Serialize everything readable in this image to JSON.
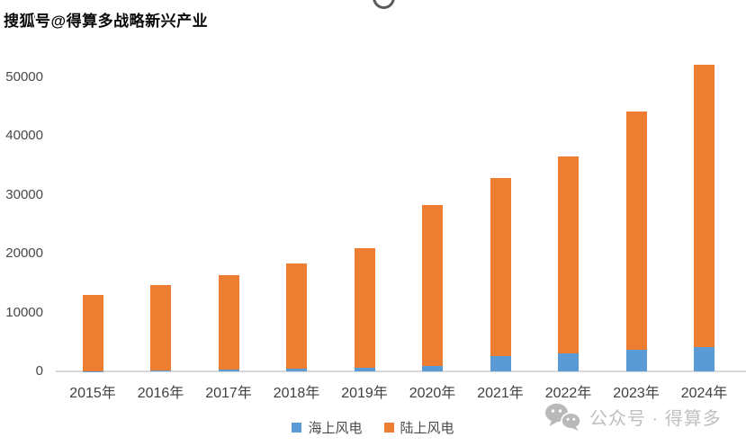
{
  "watermarks": {
    "top_left": "搜狐号@得算多战略新兴产业",
    "bottom_right": "公众号 · 得算多"
  },
  "chart_data": {
    "type": "bar",
    "stacked": true,
    "title": "",
    "xlabel": "",
    "ylabel": "",
    "categories": [
      "2015年",
      "2016年",
      "2017年",
      "2018年",
      "2019年",
      "2020年",
      "2021年",
      "2022年",
      "2023年",
      "2024年"
    ],
    "series": [
      {
        "name": "海上风电",
        "color": "#5B9BD5",
        "values": [
          75,
          150,
          280,
          440,
          590,
          900,
          2640,
          3050,
          3730,
          4130
        ]
      },
      {
        "name": "陆上风电",
        "color": "#ED7D31",
        "values": [
          12830,
          14500,
          16100,
          17900,
          20300,
          27300,
          30200,
          33450,
          40400,
          47900
        ]
      }
    ],
    "ylim": [
      0,
      60000
    ],
    "yticks": [
      0,
      10000,
      20000,
      30000,
      40000,
      50000,
      60000
    ],
    "grid": false,
    "legend_position": "bottom"
  },
  "colors": {
    "offshore_blue": "#5B9BD5",
    "onshore_orange": "#ED7D31",
    "axis_text": "#484848",
    "axis_line": "#d8d8d8",
    "watermark_gray": "#bfbfbf"
  }
}
